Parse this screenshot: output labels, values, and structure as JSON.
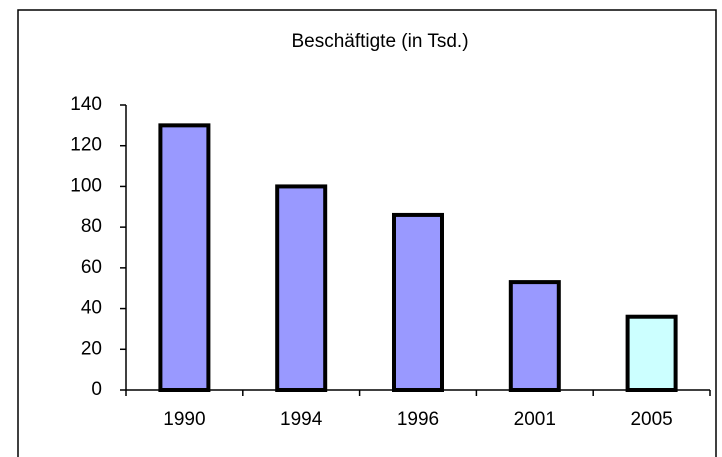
{
  "chart_data": {
    "type": "bar",
    "title": "Beschäftigte (in Tsd.)",
    "categories": [
      "1990",
      "1994",
      "1996",
      "2001",
      "2005"
    ],
    "values": [
      130,
      100,
      86,
      53,
      36
    ],
    "colors": [
      "#9999ff",
      "#9999ff",
      "#9999ff",
      "#9999ff",
      "#ccffff"
    ],
    "ylim": [
      0,
      140
    ],
    "yticks": [
      0,
      20,
      40,
      60,
      80,
      100,
      120,
      140
    ],
    "grid": false
  }
}
